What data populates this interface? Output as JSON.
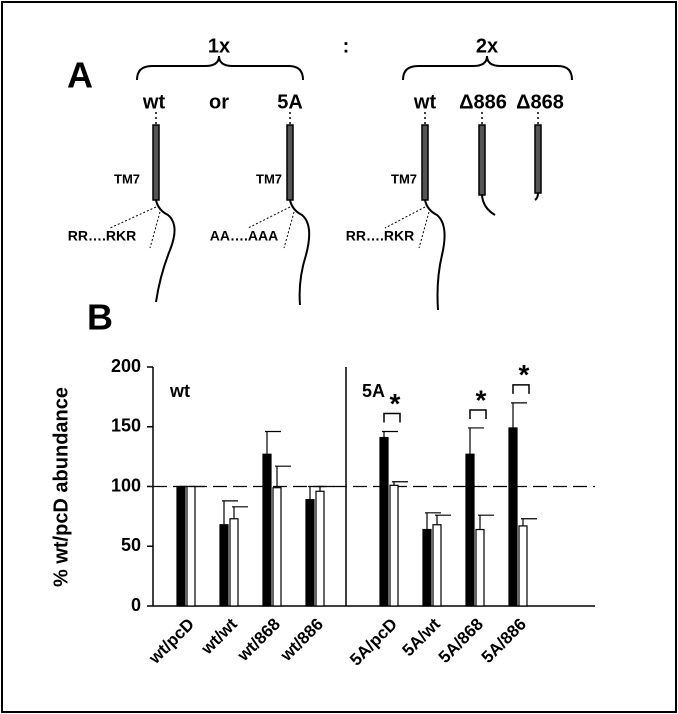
{
  "diagram": {
    "panel_label": "A",
    "ratio_left": "1x",
    "separator": ":",
    "ratio_right": "2x",
    "constructs": [
      "wt",
      "or",
      "5A",
      "wt",
      "Δ886",
      "Δ868"
    ],
    "tm_labels": [
      "TM7",
      "TM7",
      "TM7"
    ],
    "motifs": [
      "RR….RKR",
      "AA….AAA",
      "RR….RKR"
    ]
  },
  "chart_data": {
    "type": "bar",
    "panel_label": "B",
    "y_label": "% wt/pcD abundance",
    "categories": [
      "wt/pcD",
      "wt/wt",
      "wt/868",
      "wt/886",
      "5A/pcD",
      "5A/wt",
      "5A/868",
      "5A/886"
    ],
    "group_labels": [
      "wt",
      "5A"
    ],
    "series": [
      {
        "color": "#000000",
        "values": [
          100,
          68,
          127,
          89,
          141,
          64,
          127,
          149
        ],
        "errors": [
          0,
          20,
          19,
          11,
          5,
          14,
          22,
          21
        ]
      },
      {
        "color": "#ffffff",
        "values": [
          100,
          73,
          99,
          96,
          101,
          68,
          64,
          67
        ],
        "errors": [
          0,
          10,
          18,
          4,
          3,
          8,
          12,
          6
        ]
      }
    ],
    "reference_line": 100,
    "annotations": [
      {
        "label": "*",
        "category": "5A/pcD"
      },
      {
        "label": "*",
        "category": "5A/868"
      },
      {
        "label": "*",
        "category": "5A/886"
      }
    ],
    "ylim": [
      0,
      200
    ],
    "yticks": [
      0,
      50,
      100,
      150,
      200
    ]
  }
}
